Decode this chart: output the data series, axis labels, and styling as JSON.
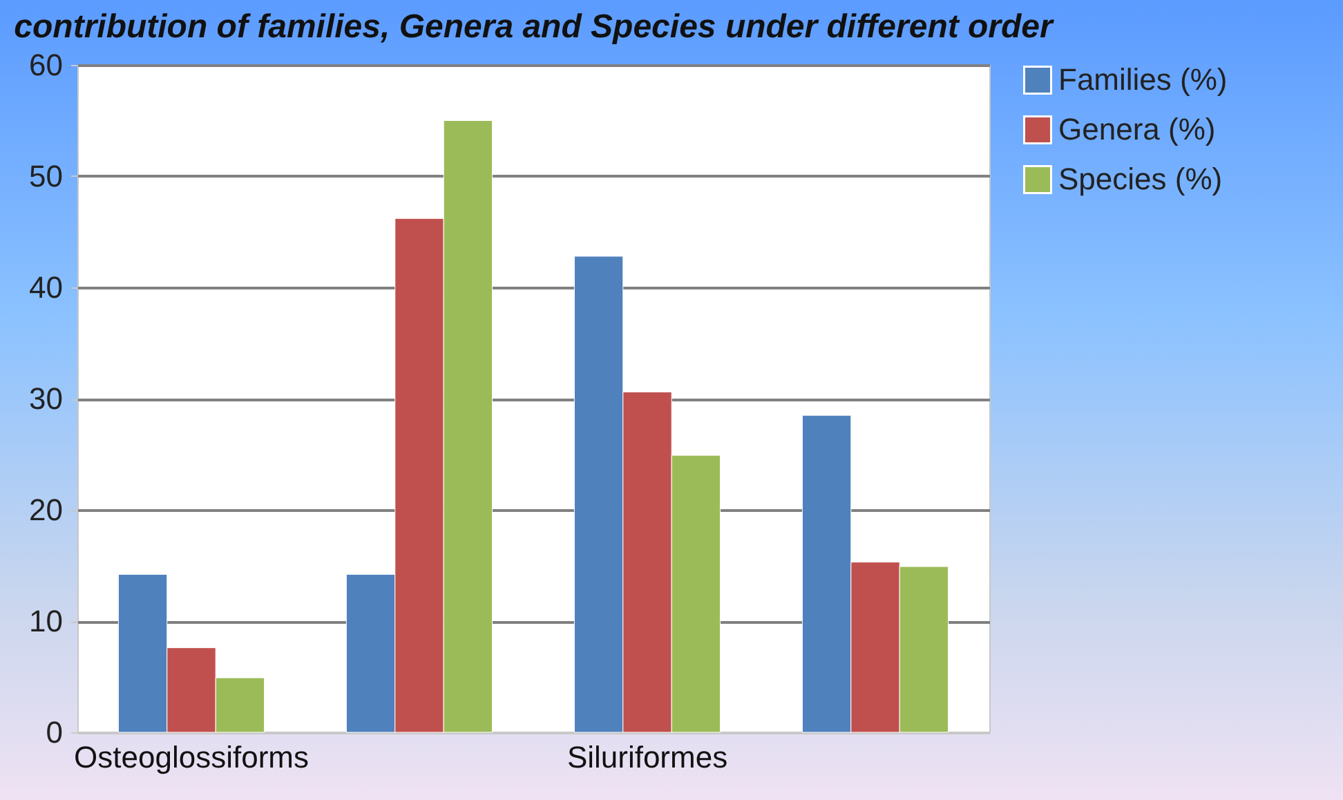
{
  "chart_data": {
    "type": "bar",
    "title": "contribution of families, Genera and Species under different order",
    "categories": [
      "Osteoglossiforms",
      null,
      "Siluriformes",
      null
    ],
    "series": [
      {
        "name": "Families (%)",
        "color": "#4f81bd",
        "values": [
          14.2,
          14.2,
          42.8,
          28.5
        ]
      },
      {
        "name": "Genera (%)",
        "color": "#c0504d",
        "values": [
          7.6,
          46.2,
          30.6,
          15.3
        ]
      },
      {
        "name": "Species (%)",
        "color": "#9bbb59",
        "values": [
          4.9,
          55.0,
          24.9,
          14.9
        ]
      }
    ],
    "ylim": [
      0,
      60
    ],
    "yticks": [
      0,
      10,
      20,
      30,
      40,
      50,
      60
    ],
    "grid": "y",
    "legend": "right"
  }
}
